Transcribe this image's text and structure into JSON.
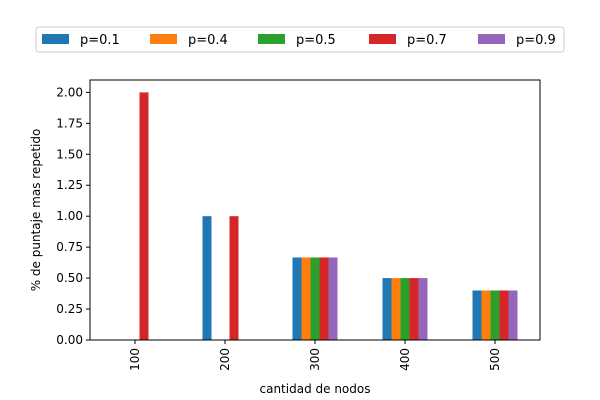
{
  "chart_data": {
    "type": "bar",
    "categories": [
      "100",
      "200",
      "300",
      "400",
      "500"
    ],
    "series": [
      {
        "name": "p=0.1",
        "color": "#1f77b4",
        "values": [
          0,
          1.0,
          0.6667,
          0.5,
          0.4
        ]
      },
      {
        "name": "p=0.4",
        "color": "#ff7f0e",
        "values": [
          0,
          0,
          0.6667,
          0.5,
          0.4
        ]
      },
      {
        "name": "p=0.5",
        "color": "#2ca02c",
        "values": [
          0,
          0,
          0.6667,
          0.5,
          0.4
        ]
      },
      {
        "name": "p=0.7",
        "color": "#d62728",
        "values": [
          2.0,
          1.0,
          0.6667,
          0.5,
          0.4
        ]
      },
      {
        "name": "p=0.9",
        "color": "#9467bd",
        "values": [
          0,
          0,
          0.6667,
          0.5,
          0.4
        ]
      }
    ],
    "title": "",
    "xlabel": "cantidad de nodos",
    "ylabel": "% de puntaje mas repetido",
    "ylim": [
      0,
      2.1
    ],
    "yticks": [
      "0.00",
      "0.25",
      "0.50",
      "0.75",
      "1.00",
      "1.25",
      "1.50",
      "1.75",
      "2.00"
    ],
    "ytick_values": [
      0,
      0.25,
      0.5,
      0.75,
      1.0,
      1.25,
      1.5,
      1.75,
      2.0
    ],
    "xtick_rotation": "vertical",
    "grid": false,
    "legend_placement": "top-center, above plot"
  }
}
